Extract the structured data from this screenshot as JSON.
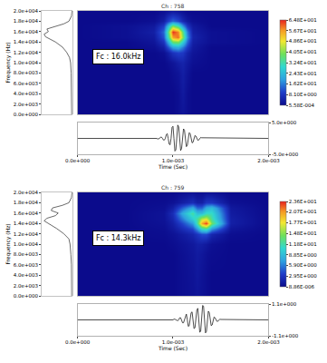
{
  "chart_data": [
    {
      "type": "spectrogram",
      "title": "Ch : 758",
      "annotation": "Fc : 16.0kHz",
      "spectrum": {
        "type": "line",
        "color": "#444444",
        "ylabel": "Frequency (Hz)",
        "tick_labels": "y",
        "frequency": [
          0,
          2000,
          4000,
          6000,
          8000,
          10000,
          11000,
          12000,
          13000,
          14000,
          14500,
          15000,
          15500,
          16000,
          16500,
          17000,
          17500,
          18000,
          19000,
          20000
        ],
        "values": [
          0.02,
          0.02,
          0.03,
          0.03,
          0.04,
          0.06,
          0.1,
          0.2,
          0.35,
          0.6,
          0.8,
          0.95,
          1.0,
          0.85,
          0.9,
          0.6,
          0.3,
          0.12,
          0.03,
          0.01
        ],
        "xlim": [
          1.1,
          0
        ],
        "ylim": [
          0,
          20000
        ],
        "yticks": [
          {
            "value": 0,
            "label": "0.0e+000"
          },
          {
            "value": 2000,
            "label": "2.0e+003"
          },
          {
            "value": 4000,
            "label": "4.0e+003"
          },
          {
            "value": 6000,
            "label": "6.0e+003"
          },
          {
            "value": 8000,
            "label": "8.0e+003"
          },
          {
            "value": 10000,
            "label": "1.0e+004"
          },
          {
            "value": 12000,
            "label": "1.2e+004"
          },
          {
            "value": 14000,
            "label": "1.4e+004"
          },
          {
            "value": 16000,
            "label": "1.6e+004"
          },
          {
            "value": 18000,
            "label": "1.8e+004"
          },
          {
            "value": 20000,
            "label": "2.0e+004"
          }
        ]
      },
      "heatmap": {
        "tick_labels": false,
        "xlim": [
          0,
          0.002
        ],
        "ylim": [
          0,
          20000
        ],
        "x": [
          0,
          0.0005,
          0.0008,
          0.0009,
          0.00095,
          0.001,
          0.00105,
          0.0011,
          0.00115,
          0.0012,
          0.0014,
          0.002
        ],
        "y": [
          0,
          4000,
          8000,
          10000,
          12000,
          13000,
          14000,
          15000,
          16000,
          17000,
          18000,
          20000
        ],
        "z": [
          [
            0,
            0,
            0,
            0,
            0,
            0,
            1,
            2,
            1,
            0,
            0,
            0
          ],
          [
            0,
            0,
            0,
            0,
            0,
            0,
            1,
            3,
            1,
            0,
            0,
            0
          ],
          [
            0,
            0,
            0,
            0,
            0,
            1,
            2,
            4,
            2,
            0,
            0,
            0
          ],
          [
            0,
            0,
            0,
            0,
            1,
            2,
            4,
            5,
            3,
            1,
            0,
            0
          ],
          [
            0,
            0,
            0,
            1,
            4,
            8,
            10,
            9,
            5,
            2,
            0,
            0
          ],
          [
            0,
            0,
            1,
            4,
            12,
            20,
            22,
            16,
            9,
            3,
            0,
            0
          ],
          [
            0,
            0,
            2,
            8,
            22,
            38,
            40,
            28,
            14,
            4,
            1,
            0
          ],
          [
            0,
            1,
            3,
            12,
            32,
            56,
            60,
            40,
            18,
            5,
            1,
            0
          ],
          [
            0,
            1,
            4,
            14,
            36,
            64,
            58,
            36,
            16,
            4,
            1,
            0
          ],
          [
            0,
            1,
            3,
            10,
            26,
            42,
            34,
            20,
            9,
            3,
            0,
            0
          ],
          [
            0,
            0,
            1,
            4,
            10,
            14,
            11,
            6,
            3,
            1,
            0,
            0
          ],
          [
            0,
            0,
            0,
            1,
            2,
            3,
            2,
            1,
            0,
            0,
            0,
            0
          ]
        ],
        "colorbar_range": [
          0.000558,
          64.8
        ],
        "colorbar_ticks": [
          {
            "value": 0.000558,
            "label": "5.58E-004"
          },
          {
            "value": 8.1,
            "label": "8.10E+000"
          },
          {
            "value": 16.2,
            "label": "1.62E+001"
          },
          {
            "value": 24.3,
            "label": "2.43E+001"
          },
          {
            "value": 32.4,
            "label": "3.24E+001"
          },
          {
            "value": 40.5,
            "label": "4.05E+001"
          },
          {
            "value": 48.6,
            "label": "4.86E+001"
          },
          {
            "value": 56.7,
            "label": "5.67E+001"
          },
          {
            "value": 64.8,
            "label": "6.48E+001"
          }
        ]
      },
      "waveform": {
        "type": "line",
        "color": "#000000",
        "xlabel": "Time (Sec)",
        "x": [
          0,
          0.0008,
          0.00081,
          0.00082,
          0.00083,
          0.00084,
          0.00085,
          0.00086,
          0.00087,
          0.00088,
          0.00089,
          0.0009,
          0.00091,
          0.00092,
          0.00093,
          0.00094,
          0.00095,
          0.00096,
          0.00097,
          0.00098,
          0.00099,
          0.001,
          0.00101,
          0.00102,
          0.00103,
          0.00104,
          0.00105,
          0.00106,
          0.00107,
          0.00108,
          0.00109,
          0.0011,
          0.00111,
          0.00112,
          0.00113,
          0.00114,
          0.00115,
          0.00116,
          0.00117,
          0.00118,
          0.00119,
          0.0012,
          0.00121,
          0.00122,
          0.00123,
          0.00124,
          0.00125,
          0.00126,
          0.00127,
          0.00128,
          0.00129,
          0.0013,
          0.002
        ],
        "values": [
          0,
          0,
          0.2,
          0.2,
          0,
          -0.2,
          -0.2,
          0,
          0.4,
          0.4,
          0,
          -0.5,
          -0.5,
          0,
          1.2,
          1.5,
          0,
          -1.8,
          -2.0,
          0,
          3.5,
          3.8,
          0,
          -4.0,
          -3.6,
          0,
          4.2,
          3.6,
          0,
          -3.8,
          -3.2,
          0,
          3.0,
          2.6,
          0,
          -2.6,
          -2.2,
          0,
          1.8,
          1.5,
          0,
          -1.4,
          -1.2,
          0,
          0.9,
          0.7,
          0,
          -0.6,
          -0.5,
          0,
          0.3,
          0.2,
          0
        ],
        "xlim": [
          0,
          0.002
        ],
        "ylim": [
          -5,
          5
        ],
        "xticks": [
          {
            "value": 0,
            "label": "0.0e+000"
          },
          {
            "value": 0.001,
            "label": "1.0e-003"
          },
          {
            "value": 0.002,
            "label": "2.0e-003"
          }
        ],
        "yticks": [
          {
            "value": -5,
            "label": "-5.0e+000"
          },
          {
            "value": 5,
            "label": "5.0e+000"
          }
        ]
      }
    },
    {
      "type": "spectrogram",
      "title": "Ch : 759",
      "annotation": "Fc : 14.3kHz",
      "spectrum": {
        "type": "line",
        "color": "#444444",
        "ylabel": "Frequency (Hz)",
        "tick_labels": "y",
        "frequency": [
          0,
          2000,
          4000,
          6000,
          8000,
          10000,
          11000,
          12000,
          13000,
          14000,
          14500,
          15000,
          15500,
          16000,
          16500,
          17000,
          17500,
          18000,
          19000,
          20000
        ],
        "values": [
          0.02,
          0.02,
          0.03,
          0.03,
          0.05,
          0.08,
          0.12,
          0.3,
          0.55,
          0.85,
          1.0,
          0.9,
          0.6,
          0.5,
          0.75,
          0.7,
          0.35,
          0.12,
          0.03,
          0.01
        ],
        "xlim": [
          1.1,
          0
        ],
        "ylim": [
          0,
          20000
        ],
        "yticks": [
          {
            "value": 0,
            "label": "0.0e+000"
          },
          {
            "value": 2000,
            "label": "2.0e+003"
          },
          {
            "value": 4000,
            "label": "4.0e+003"
          },
          {
            "value": 6000,
            "label": "6.0e+003"
          },
          {
            "value": 8000,
            "label": "8.0e+003"
          },
          {
            "value": 10000,
            "label": "1.0e+004"
          },
          {
            "value": 12000,
            "label": "1.2e+004"
          },
          {
            "value": 14000,
            "label": "1.4e+004"
          },
          {
            "value": 16000,
            "label": "1.6e+004"
          },
          {
            "value": 18000,
            "label": "1.8e+004"
          },
          {
            "value": 20000,
            "label": "2.0e+004"
          }
        ]
      },
      "heatmap": {
        "tick_labels": false,
        "xlim": [
          0,
          0.002
        ],
        "ylim": [
          0,
          20000
        ],
        "x": [
          0,
          0.0005,
          0.0009,
          0.001,
          0.0011,
          0.0012,
          0.00125,
          0.0013,
          0.00135,
          0.0014,
          0.0016,
          0.002
        ],
        "y": [
          0,
          4000,
          8000,
          10000,
          12000,
          13000,
          14000,
          15000,
          16000,
          17000,
          18000,
          20000
        ],
        "z": [
          [
            0,
            0,
            0,
            0,
            0.3,
            0.5,
            0.8,
            0.5,
            0.3,
            0,
            0,
            0
          ],
          [
            0,
            0,
            0,
            0,
            0.3,
            0.6,
            1,
            0.6,
            0.3,
            0,
            0,
            0
          ],
          [
            0,
            0,
            0,
            0,
            0.4,
            0.8,
            1.2,
            0.9,
            0.5,
            0.2,
            0,
            0
          ],
          [
            0,
            0,
            0,
            0.2,
            0.6,
            1,
            1.5,
            1.4,
            1,
            0.4,
            0,
            0
          ],
          [
            0,
            0,
            0.2,
            0.5,
            1.2,
            2,
            3,
            4,
            4,
            2,
            0.3,
            0
          ],
          [
            0,
            0,
            0.3,
            1,
            2.5,
            4,
            7,
            11,
            12,
            7,
            0.8,
            0
          ],
          [
            0,
            0,
            0.5,
            1.5,
            4,
            7,
            12,
            20,
            23,
            14,
            1.5,
            0
          ],
          [
            0,
            0,
            0.6,
            2,
            6,
            10,
            12,
            16,
            17,
            12,
            1.5,
            0
          ],
          [
            0,
            0,
            0.6,
            2.5,
            8,
            12,
            9,
            9,
            11,
            11,
            1.2,
            0
          ],
          [
            0,
            0,
            0.4,
            1.5,
            5,
            8,
            5,
            5,
            8,
            9,
            1,
            0
          ],
          [
            0,
            0,
            0.2,
            0.5,
            1.5,
            2.5,
            1.5,
            1.5,
            3,
            3,
            0.4,
            0
          ],
          [
            0,
            0,
            0,
            0,
            0.3,
            0.5,
            0.3,
            0.3,
            0.5,
            0.5,
            0,
            0
          ]
        ],
        "colorbar_range": [
          8.86e-06,
          23.6
        ],
        "colorbar_ticks": [
          {
            "value": 8.86e-06,
            "label": "8.86E-006"
          },
          {
            "value": 2.95,
            "label": "2.95E+000"
          },
          {
            "value": 5.9,
            "label": "5.90E+000"
          },
          {
            "value": 8.85,
            "label": "8.85E+000"
          },
          {
            "value": 11.8,
            "label": "1.18E+001"
          },
          {
            "value": 14.8,
            "label": "1.48E+001"
          },
          {
            "value": 17.7,
            "label": "1.77E+001"
          },
          {
            "value": 20.7,
            "label": "2.07E+001"
          },
          {
            "value": 23.6,
            "label": "2.36E+001"
          }
        ]
      },
      "waveform": {
        "type": "line",
        "color": "#000000",
        "xlabel": "Time (Sec)",
        "x": [
          0,
          0.001,
          0.00101,
          0.00102,
          0.00103,
          0.00104,
          0.00105,
          0.00106,
          0.00107,
          0.00108,
          0.00109,
          0.0011,
          0.00111,
          0.00112,
          0.00113,
          0.00114,
          0.00115,
          0.00116,
          0.00117,
          0.00118,
          0.00119,
          0.0012,
          0.00121,
          0.00122,
          0.00123,
          0.00124,
          0.00125,
          0.00126,
          0.00127,
          0.00128,
          0.00129,
          0.0013,
          0.00131,
          0.00132,
          0.00133,
          0.00134,
          0.00135,
          0.00136,
          0.00137,
          0.00138,
          0.00139,
          0.0014,
          0.00141,
          0.00142,
          0.00143,
          0.00144,
          0.00145,
          0.00146,
          0.00147,
          0.00148,
          0.00149,
          0.0015,
          0.002
        ],
        "values": [
          0,
          0,
          0.05,
          0.05,
          0,
          -0.05,
          -0.05,
          0,
          0.15,
          0.15,
          0,
          -0.2,
          -0.2,
          0,
          0.35,
          0.4,
          0,
          -0.45,
          -0.4,
          0,
          0.5,
          0.55,
          0,
          -0.6,
          -0.55,
          0,
          0.7,
          0.8,
          0,
          -0.85,
          -0.8,
          0,
          1.0,
          0.95,
          0,
          -0.9,
          -0.8,
          0,
          0.6,
          0.5,
          0,
          -0.4,
          -0.35,
          0,
          0.2,
          0.15,
          0,
          -0.1,
          -0.1,
          0,
          0.05,
          0.03,
          0
        ],
        "xlim": [
          0,
          0.002
        ],
        "ylim": [
          -1.1,
          1.1
        ],
        "xticks": [
          {
            "value": 0,
            "label": "0.0e+000"
          },
          {
            "value": 0.001,
            "label": "1.0e-003"
          },
          {
            "value": 0.002,
            "label": "2.0e-003"
          }
        ],
        "yticks": [
          {
            "value": -1.1,
            "label": "-1.1e+000"
          },
          {
            "value": 1.1,
            "label": "1.1e+000"
          }
        ]
      }
    }
  ]
}
